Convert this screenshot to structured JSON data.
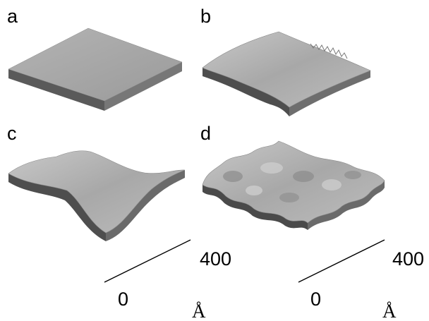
{
  "panels": [
    {
      "label": "a"
    },
    {
      "label": "b"
    },
    {
      "label": "c"
    },
    {
      "label": "d"
    }
  ],
  "scale_bars": [
    {
      "start": "0",
      "end": "400",
      "unit": "Å"
    },
    {
      "start": "0",
      "end": "400",
      "unit": "Å"
    }
  ]
}
